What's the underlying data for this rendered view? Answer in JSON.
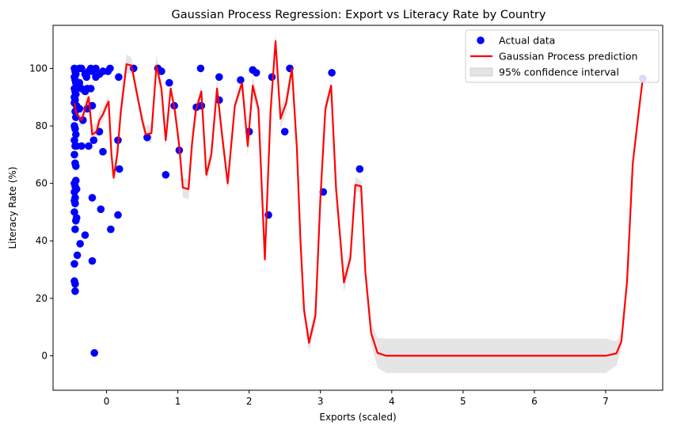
{
  "chart_data": {
    "type": "scatter",
    "title": "Gaussian Process Regression: Export vs Literacy Rate by Country",
    "xlabel": "Exports (scaled)",
    "ylabel": "Literacy Rate (%)",
    "xlim": [
      -0.75,
      7.8
    ],
    "ylim": [
      -12,
      115
    ],
    "xticks": [
      0,
      1,
      2,
      3,
      4,
      5,
      6,
      7
    ],
    "yticks": [
      0,
      20,
      40,
      60,
      80,
      100
    ],
    "grid": false,
    "legend_position": "top-right",
    "colors": {
      "scatter": "#0000ff",
      "line": "#ff0000",
      "band": "#d3d3d3"
    },
    "legend": [
      {
        "type": "marker",
        "label": "Actual data"
      },
      {
        "type": "line",
        "label": "Gaussian Process prediction"
      },
      {
        "type": "band",
        "label": "95% confidence interval"
      }
    ],
    "series": [
      {
        "name": "Actual data",
        "type": "scatter",
        "points": [
          [
            -0.45,
            100
          ],
          [
            -0.44,
            99
          ],
          [
            -0.43,
            98
          ],
          [
            -0.45,
            97
          ],
          [
            -0.44,
            96
          ],
          [
            -0.43,
            95
          ],
          [
            -0.42,
            94
          ],
          [
            -0.45,
            93
          ],
          [
            -0.44,
            92
          ],
          [
            -0.43,
            91
          ],
          [
            -0.45,
            90
          ],
          [
            -0.44,
            89
          ],
          [
            -0.45,
            88
          ],
          [
            -0.42,
            87
          ],
          [
            -0.44,
            85
          ],
          [
            -0.43,
            83
          ],
          [
            -0.45,
            80
          ],
          [
            -0.44,
            79
          ],
          [
            -0.43,
            77
          ],
          [
            -0.45,
            75
          ],
          [
            -0.44,
            73
          ],
          [
            -0.42,
            73
          ],
          [
            -0.45,
            70
          ],
          [
            -0.44,
            67
          ],
          [
            -0.43,
            66
          ],
          [
            -0.45,
            60
          ],
          [
            -0.43,
            61
          ],
          [
            -0.44,
            59
          ],
          [
            -0.42,
            58
          ],
          [
            -0.45,
            57
          ],
          [
            -0.44,
            55
          ],
          [
            -0.45,
            54
          ],
          [
            -0.44,
            53
          ],
          [
            -0.45,
            50
          ],
          [
            -0.42,
            48
          ],
          [
            -0.43,
            47
          ],
          [
            -0.44,
            44
          ],
          [
            -0.41,
            35
          ],
          [
            -0.45,
            32
          ],
          [
            -0.45,
            26
          ],
          [
            -0.44,
            25
          ],
          [
            -0.44,
            22.5
          ],
          [
            -0.38,
            100
          ],
          [
            -0.35,
            100
          ],
          [
            -0.3,
            98
          ],
          [
            -0.28,
            97
          ],
          [
            -0.25,
            99
          ],
          [
            -0.22,
            100
          ],
          [
            -0.2,
            99
          ],
          [
            -0.15,
            100
          ],
          [
            -0.1,
            98
          ],
          [
            -0.05,
            99
          ],
          [
            0.02,
            99
          ],
          [
            0.05,
            100
          ],
          [
            -0.38,
            95
          ],
          [
            -0.35,
            93
          ],
          [
            -0.3,
            92
          ],
          [
            -0.27,
            93
          ],
          [
            -0.22,
            93
          ],
          [
            -0.38,
            86
          ],
          [
            -0.33,
            82
          ],
          [
            -0.27,
            86
          ],
          [
            -0.2,
            87
          ],
          [
            -0.25,
            73
          ],
          [
            -0.35,
            73
          ],
          [
            -0.18,
            75
          ],
          [
            -0.1,
            78
          ],
          [
            -0.15,
            97
          ],
          [
            -0.05,
            71
          ],
          [
            -0.37,
            39
          ],
          [
            -0.3,
            42
          ],
          [
            -0.2,
            55
          ],
          [
            -0.08,
            51
          ],
          [
            -0.2,
            33
          ],
          [
            -0.17,
            1
          ],
          [
            0.06,
            44
          ],
          [
            0.16,
            75
          ],
          [
            0.17,
            97
          ],
          [
            0.16,
            49
          ],
          [
            0.18,
            65
          ],
          [
            0.38,
            100
          ],
          [
            0.57,
            76
          ],
          [
            0.72,
            100
          ],
          [
            0.77,
            99
          ],
          [
            0.83,
            63
          ],
          [
            0.88,
            95
          ],
          [
            0.95,
            87
          ],
          [
            1.02,
            71.5
          ],
          [
            1.26,
            86.5
          ],
          [
            1.32,
            100
          ],
          [
            1.33,
            87
          ],
          [
            1.58,
            89
          ],
          [
            1.58,
            97
          ],
          [
            1.88,
            96
          ],
          [
            2.0,
            78
          ],
          [
            2.05,
            99.5
          ],
          [
            2.1,
            98.5
          ],
          [
            2.27,
            49
          ],
          [
            2.32,
            97
          ],
          [
            2.5,
            78
          ],
          [
            2.57,
            100
          ],
          [
            3.04,
            57
          ],
          [
            3.16,
            98.5
          ],
          [
            3.55,
            65
          ],
          [
            7.52,
            96.5
          ]
        ]
      },
      {
        "name": "Gaussian Process prediction",
        "type": "line",
        "points": [
          [
            -0.45,
            88
          ],
          [
            -0.42,
            84
          ],
          [
            -0.35,
            82
          ],
          [
            -0.3,
            86
          ],
          [
            -0.25,
            90
          ],
          [
            -0.2,
            77
          ],
          [
            -0.14,
            78
          ],
          [
            -0.1,
            82
          ],
          [
            -0.05,
            84
          ],
          [
            0.0,
            87
          ],
          [
            0.03,
            88.5
          ],
          [
            0.07,
            70
          ],
          [
            0.1,
            62
          ],
          [
            0.15,
            70
          ],
          [
            0.2,
            85
          ],
          [
            0.28,
            101.5
          ],
          [
            0.35,
            101
          ],
          [
            0.42,
            92
          ],
          [
            0.5,
            82
          ],
          [
            0.55,
            77
          ],
          [
            0.63,
            77.5
          ],
          [
            0.7,
            101
          ],
          [
            0.77,
            93
          ],
          [
            0.83,
            75
          ],
          [
            0.9,
            93
          ],
          [
            0.96,
            85
          ],
          [
            1.02,
            73
          ],
          [
            1.07,
            58.5
          ],
          [
            1.15,
            58
          ],
          [
            1.2,
            74
          ],
          [
            1.25,
            85
          ],
          [
            1.33,
            92
          ],
          [
            1.4,
            63
          ],
          [
            1.47,
            70
          ],
          [
            1.55,
            93
          ],
          [
            1.62,
            77
          ],
          [
            1.7,
            60
          ],
          [
            1.8,
            87
          ],
          [
            1.9,
            95
          ],
          [
            1.98,
            73
          ],
          [
            2.05,
            94
          ],
          [
            2.13,
            86
          ],
          [
            2.22,
            33.5
          ],
          [
            2.3,
            85
          ],
          [
            2.37,
            109.5
          ],
          [
            2.44,
            82.5
          ],
          [
            2.52,
            88
          ],
          [
            2.6,
            100
          ],
          [
            2.67,
            72
          ],
          [
            2.72,
            40
          ],
          [
            2.77,
            16
          ],
          [
            2.84,
            4.5
          ],
          [
            2.93,
            14
          ],
          [
            3.0,
            55
          ],
          [
            3.07,
            86
          ],
          [
            3.15,
            94
          ],
          [
            3.22,
            58
          ],
          [
            3.33,
            25.5
          ],
          [
            3.42,
            34
          ],
          [
            3.49,
            59.5
          ],
          [
            3.57,
            59
          ],
          [
            3.63,
            29
          ],
          [
            3.71,
            8
          ],
          [
            3.8,
            1
          ],
          [
            3.92,
            0
          ],
          [
            4.0,
            0
          ],
          [
            5.0,
            0
          ],
          [
            6.0,
            0
          ],
          [
            7.0,
            0
          ],
          [
            7.15,
            0.8
          ],
          [
            7.22,
            5
          ],
          [
            7.3,
            26
          ],
          [
            7.38,
            67
          ],
          [
            7.45,
            82
          ],
          [
            7.52,
            96.5
          ]
        ]
      }
    ]
  }
}
